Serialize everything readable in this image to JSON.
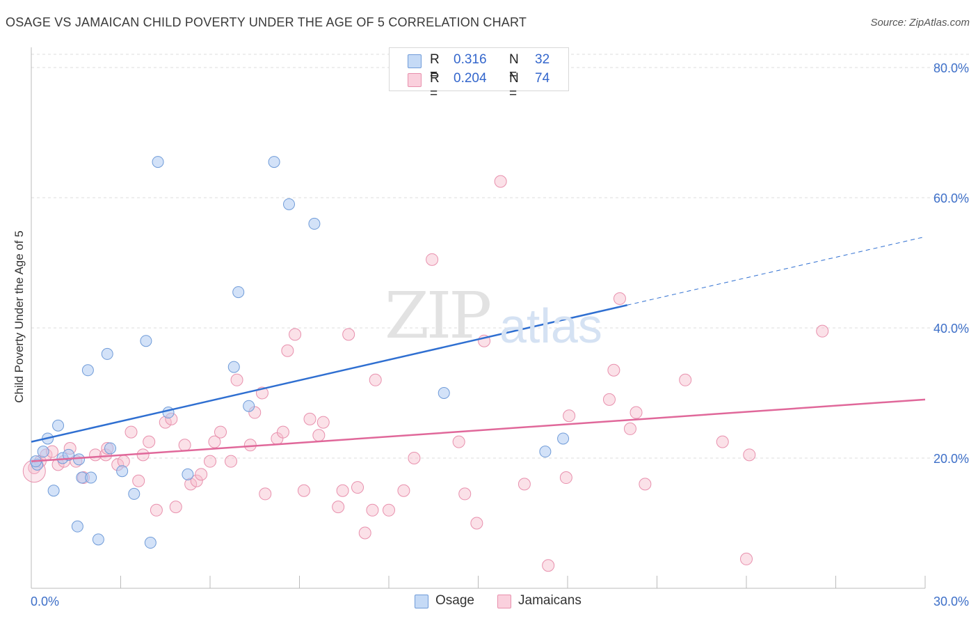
{
  "title": "OSAGE VS JAMAICAN CHILD POVERTY UNDER THE AGE OF 5 CORRELATION CHART",
  "source": "Source: ZipAtlas.com",
  "watermark": {
    "zip": "ZIP",
    "atlas": "atlas"
  },
  "legend": {
    "r_label": "R =",
    "n_label": "N =",
    "osage": {
      "r": "0.316",
      "n": "32"
    },
    "jamaicans": {
      "r": "0.204",
      "n": "74"
    }
  },
  "colors": {
    "osage_fill": "#aecbf2",
    "osage_stroke": "#6f9bd8",
    "osage_line": "#2f6fd1",
    "jamaicans_fill": "#f6bccd",
    "jamaicans_stroke": "#e890ad",
    "jamaicans_line": "#e0689a",
    "tick_label": "#3d6fc8",
    "grid": "#dddddd"
  },
  "chart_data": {
    "type": "scatter",
    "title": "OSAGE VS JAMAICAN CHILD POVERTY UNDER THE AGE OF 5 CORRELATION CHART",
    "ylabel": "Child Poverty Under the Age of 5",
    "xlabel": "",
    "xlim": [
      0,
      30
    ],
    "ylim": [
      0,
      82
    ],
    "x_tick_labels": [
      {
        "value": 0,
        "label": "0.0%"
      },
      {
        "value": 30,
        "label": "30.0%"
      }
    ],
    "y_tick_labels": [
      {
        "value": 20,
        "label": "20.0%"
      },
      {
        "value": 40,
        "label": "40.0%"
      },
      {
        "value": 60,
        "label": "60.0%"
      },
      {
        "value": 80,
        "label": "80.0%"
      }
    ],
    "grid": true,
    "legend_position": "top-center and bottom",
    "series": [
      {
        "name": "Osage",
        "r": 0.316,
        "n": 32,
        "points": [
          [
            0.2,
            19.0
          ],
          [
            0.4,
            21.0
          ],
          [
            0.55,
            23.0
          ],
          [
            0.75,
            15.0
          ],
          [
            0.9,
            25.0
          ],
          [
            1.05,
            20.0
          ],
          [
            1.25,
            20.5
          ],
          [
            1.55,
            9.5
          ],
          [
            1.7,
            17.0
          ],
          [
            1.9,
            33.5
          ],
          [
            2.0,
            17.0
          ],
          [
            2.25,
            7.5
          ],
          [
            2.55,
            36.0
          ],
          [
            2.65,
            21.5
          ],
          [
            3.05,
            18.0
          ],
          [
            3.45,
            14.5
          ],
          [
            3.85,
            38.0
          ],
          [
            4.0,
            7.0
          ],
          [
            4.25,
            65.5
          ],
          [
            4.6,
            27.0
          ],
          [
            5.25,
            17.5
          ],
          [
            6.8,
            34.0
          ],
          [
            6.95,
            45.5
          ],
          [
            7.3,
            28.0
          ],
          [
            8.15,
            65.5
          ],
          [
            8.65,
            59.0
          ],
          [
            9.5,
            56.0
          ],
          [
            13.85,
            30.0
          ],
          [
            17.25,
            21.0
          ],
          [
            17.85,
            23.0
          ],
          [
            0.15,
            19.5
          ],
          [
            1.6,
            19.8
          ]
        ],
        "trend": {
          "x0": 0,
          "y0": 22.5,
          "x1": 20.0,
          "y1": 43.5,
          "dash_to_x": 30,
          "dash_to_y": 54.0
        }
      },
      {
        "name": "Jamaicans",
        "r": 0.204,
        "n": 74,
        "points": [
          [
            0.1,
            18.5
          ],
          [
            0.3,
            19.5
          ],
          [
            0.5,
            20.5
          ],
          [
            0.7,
            21.0
          ],
          [
            0.9,
            19.0
          ],
          [
            1.1,
            19.5
          ],
          [
            1.3,
            21.5
          ],
          [
            1.5,
            19.5
          ],
          [
            1.75,
            17.0
          ],
          [
            2.15,
            20.5
          ],
          [
            2.5,
            20.5
          ],
          [
            2.55,
            21.5
          ],
          [
            2.9,
            19.0
          ],
          [
            3.1,
            19.5
          ],
          [
            3.35,
            24.0
          ],
          [
            3.6,
            16.5
          ],
          [
            3.75,
            20.5
          ],
          [
            3.95,
            22.5
          ],
          [
            4.2,
            12.0
          ],
          [
            4.5,
            25.5
          ],
          [
            4.7,
            26.0
          ],
          [
            4.85,
            12.5
          ],
          [
            5.15,
            22.0
          ],
          [
            5.35,
            16.0
          ],
          [
            5.55,
            16.5
          ],
          [
            5.7,
            17.5
          ],
          [
            6.0,
            19.5
          ],
          [
            6.15,
            22.5
          ],
          [
            6.35,
            24.0
          ],
          [
            6.7,
            19.5
          ],
          [
            6.9,
            32.0
          ],
          [
            7.35,
            22.0
          ],
          [
            7.5,
            27.0
          ],
          [
            7.75,
            30.0
          ],
          [
            7.85,
            14.5
          ],
          [
            8.25,
            23.0
          ],
          [
            8.45,
            24.0
          ],
          [
            8.6,
            36.5
          ],
          [
            8.85,
            39.0
          ],
          [
            9.15,
            15.0
          ],
          [
            9.35,
            26.0
          ],
          [
            9.65,
            23.5
          ],
          [
            9.8,
            25.5
          ],
          [
            10.3,
            12.5
          ],
          [
            10.45,
            15.0
          ],
          [
            10.65,
            39.0
          ],
          [
            10.95,
            15.5
          ],
          [
            11.2,
            8.5
          ],
          [
            11.45,
            12.0
          ],
          [
            11.55,
            32.0
          ],
          [
            12.0,
            12.0
          ],
          [
            12.5,
            15.0
          ],
          [
            12.85,
            20.0
          ],
          [
            13.45,
            50.5
          ],
          [
            14.35,
            22.5
          ],
          [
            14.55,
            14.5
          ],
          [
            14.95,
            10.0
          ],
          [
            15.2,
            38.0
          ],
          [
            15.75,
            62.5
          ],
          [
            16.55,
            16.0
          ],
          [
            17.35,
            3.5
          ],
          [
            17.95,
            17.0
          ],
          [
            18.05,
            26.5
          ],
          [
            19.4,
            29.0
          ],
          [
            19.55,
            33.5
          ],
          [
            19.75,
            44.5
          ],
          [
            20.1,
            24.5
          ],
          [
            20.3,
            27.0
          ],
          [
            20.6,
            16.0
          ],
          [
            21.95,
            32.0
          ],
          [
            23.2,
            22.5
          ],
          [
            24.0,
            4.5
          ],
          [
            24.1,
            20.5
          ],
          [
            26.55,
            39.5
          ]
        ],
        "trend": {
          "x0": 0,
          "y0": 19.5,
          "x1": 30,
          "y1": 29.0
        }
      }
    ]
  },
  "bottom_legend": {
    "osage": "Osage",
    "jamaicans": "Jamaicans"
  }
}
